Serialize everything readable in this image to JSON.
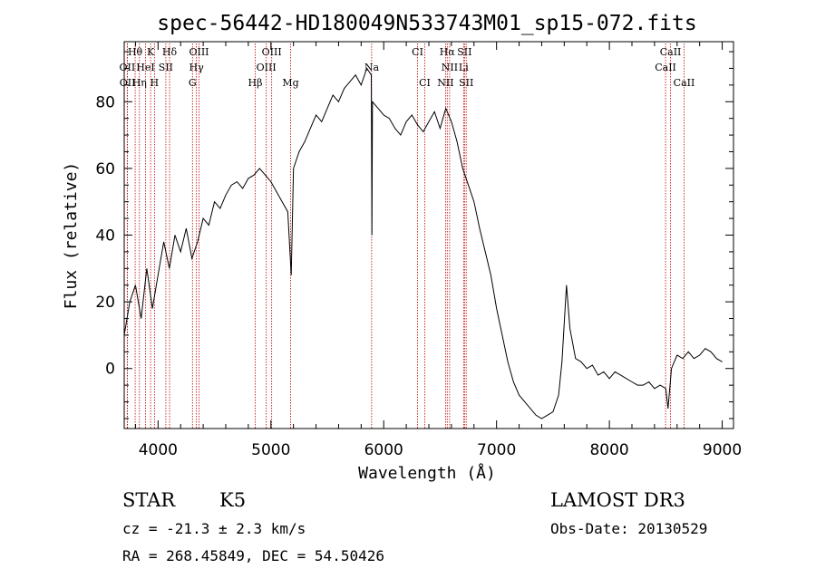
{
  "chart_data": {
    "type": "line",
    "title": "spec-56442-HD180049N533743M01_sp15-072.fits",
    "xlabel": "Wavelength (Å)",
    "ylabel": "Flux (relative)",
    "xlim": [
      3700,
      9100
    ],
    "ylim": [
      -18,
      98
    ],
    "xticks": [
      4000,
      5000,
      6000,
      7000,
      8000,
      9000
    ],
    "yticks": [
      0,
      20,
      40,
      60,
      80
    ],
    "grid": false,
    "series": [
      {
        "x": [
          3700,
          3750,
          3800,
          3850,
          3900,
          3950,
          4000,
          4050,
          4100,
          4150,
          4200,
          4250,
          4300,
          4350,
          4400,
          4450,
          4500,
          4550,
          4600,
          4650,
          4700,
          4750,
          4800,
          4850,
          4900,
          4950,
          5000,
          5050,
          5100,
          5150,
          5180,
          5200,
          5250,
          5300,
          5350,
          5400,
          5450,
          5500,
          5550,
          5600,
          5650,
          5700,
          5750,
          5800,
          5850,
          5890,
          5895,
          5900,
          5950,
          6000,
          6050,
          6100,
          6150,
          6200,
          6250,
          6300,
          6350,
          6400,
          6450,
          6500,
          6550,
          6600,
          6650,
          6700,
          6750,
          6800,
          6850,
          6900,
          6950,
          7000,
          7050,
          7100,
          7150,
          7200,
          7250,
          7300,
          7350,
          7400,
          7450,
          7500,
          7550,
          7580,
          7620,
          7650,
          7700,
          7750,
          7800,
          7850,
          7900,
          7950,
          8000,
          8050,
          8100,
          8150,
          8200,
          8250,
          8300,
          8350,
          8400,
          8450,
          8500,
          8520,
          8550,
          8600,
          8650,
          8700,
          8750,
          8800,
          8850,
          8900,
          8950,
          9000
        ],
        "y": [
          10,
          20,
          25,
          15,
          30,
          18,
          28,
          38,
          30,
          40,
          35,
          42,
          33,
          38,
          45,
          43,
          50,
          48,
          52,
          55,
          56,
          54,
          57,
          58,
          60,
          58,
          56,
          53,
          50,
          47,
          28,
          60,
          65,
          68,
          72,
          76,
          74,
          78,
          82,
          80,
          84,
          86,
          88,
          85,
          90,
          88,
          40,
          80,
          78,
          76,
          75,
          72,
          70,
          74,
          76,
          73,
          71,
          74,
          77,
          72,
          78,
          74,
          68,
          60,
          55,
          50,
          42,
          35,
          28,
          18,
          10,
          2,
          -4,
          -8,
          -10,
          -12,
          -14,
          -15,
          -14,
          -13,
          -8,
          2,
          25,
          12,
          3,
          2,
          0,
          1,
          -2,
          -1,
          -3,
          -1,
          -2,
          -3,
          -4,
          -5,
          -5,
          -4,
          -6,
          -5,
          -6,
          -12,
          0,
          4,
          3,
          5,
          3,
          4,
          6,
          5,
          3,
          2
        ]
      }
    ],
    "line_labels": [
      {
        "text": "Hθ",
        "x": 3797,
        "row": 1
      },
      {
        "text": "K",
        "x": 3934,
        "row": 1
      },
      {
        "text": "Hδ",
        "x": 4102,
        "row": 1
      },
      {
        "text": "OIII",
        "x": 4363,
        "row": 1
      },
      {
        "text": "OIII",
        "x": 5007,
        "row": 1
      },
      {
        "text": "CI",
        "x": 6300,
        "row": 1
      },
      {
        "text": "Hα",
        "x": 6563,
        "row": 1
      },
      {
        "text": "SII",
        "x": 6716,
        "row": 1
      },
      {
        "text": "CaII",
        "x": 8542,
        "row": 1
      },
      {
        "text": "OII",
        "x": 3727,
        "row": 2
      },
      {
        "text": "HeI",
        "x": 3889,
        "row": 2
      },
      {
        "text": "SII",
        "x": 4069,
        "row": 2
      },
      {
        "text": "Hγ",
        "x": 4340,
        "row": 2
      },
      {
        "text": "OIII",
        "x": 4959,
        "row": 2
      },
      {
        "text": "Na",
        "x": 5893,
        "row": 2
      },
      {
        "text": "NII",
        "x": 6584,
        "row": 2
      },
      {
        "text": "Li",
        "x": 6708,
        "row": 2
      },
      {
        "text": "CaII",
        "x": 8498,
        "row": 2
      },
      {
        "text": "OII",
        "x": 3729,
        "row": 3
      },
      {
        "text": "Hη",
        "x": 3835,
        "row": 3
      },
      {
        "text": "H",
        "x": 3968,
        "row": 3
      },
      {
        "text": "G",
        "x": 4305,
        "row": 3
      },
      {
        "text": "Hβ",
        "x": 4861,
        "row": 3
      },
      {
        "text": "Mg",
        "x": 5175,
        "row": 3
      },
      {
        "text": "CI",
        "x": 6364,
        "row": 3
      },
      {
        "text": "NII",
        "x": 6548,
        "row": 3
      },
      {
        "text": "SII",
        "x": 6731,
        "row": 3
      },
      {
        "text": "CaII",
        "x": 8662,
        "row": 3
      }
    ],
    "colors": {
      "line": "#000000",
      "marker_lines": "#c00000"
    }
  },
  "info": {
    "object_class": "STAR",
    "subclass": "K5",
    "survey": "LAMOST DR3",
    "cz_text": "cz = -21.3 ± 2.3 km/s",
    "obs_date": "Obs-Date: 20130529",
    "coords": "RA = 268.45849, DEC =  54.50426"
  }
}
